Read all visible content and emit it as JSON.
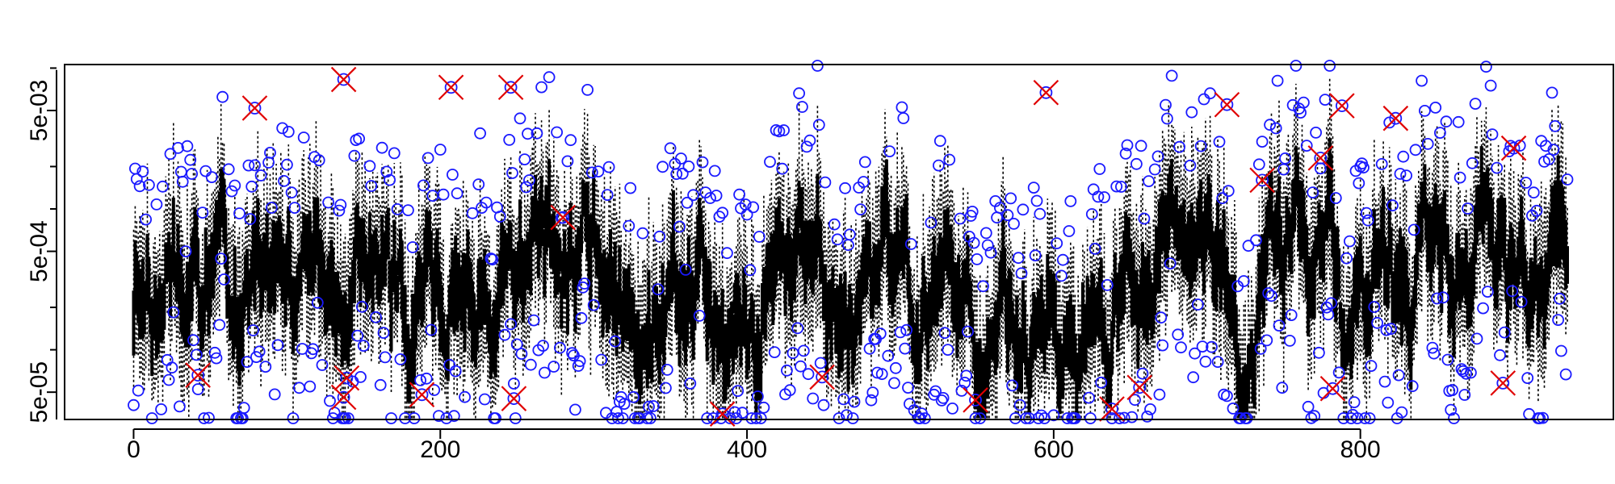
{
  "chart_data": {
    "type": "box-series",
    "title": "",
    "xlabel": "",
    "ylabel": "",
    "x_scale": "linear",
    "y_scale": "log",
    "xlim": [
      -45,
      965
    ],
    "ylim": [
      3.2e-05,
      0.0106
    ],
    "x_ticks": [
      0,
      200,
      400,
      600,
      800
    ],
    "x_tick_labels": [
      "0",
      "200",
      "400",
      "600",
      "800"
    ],
    "y_ticks": [
      5e-05,
      0.0005,
      0.005
    ],
    "y_tick_labels": [
      "5e-05",
      "5e-04",
      "5e-03"
    ],
    "y_minor_ticks": [
      0.0001,
      0.0002,
      0.001,
      0.002,
      0.01
    ],
    "n_positions": 936,
    "grid": false,
    "legend": "none",
    "colors": {
      "box": "#000000",
      "circle": "#1a1aff",
      "cross": "#e00000"
    },
    "cross_points": [
      {
        "x": 42,
        "y": 6.6e-05
      },
      {
        "x": 79,
        "y": 0.0052
      },
      {
        "x": 137,
        "y": 0.0083
      },
      {
        "x": 137,
        "y": 4.6e-05
      },
      {
        "x": 139,
        "y": 6.3e-05
      },
      {
        "x": 188,
        "y": 4.8e-05
      },
      {
        "x": 207,
        "y": 0.0073
      },
      {
        "x": 246,
        "y": 0.0073
      },
      {
        "x": 248,
        "y": 4.5e-05
      },
      {
        "x": 280,
        "y": 0.00087
      },
      {
        "x": 384,
        "y": 3.5e-05
      },
      {
        "x": 449,
        "y": 6.4e-05
      },
      {
        "x": 549,
        "y": 4.4e-05
      },
      {
        "x": 595,
        "y": 0.0067
      },
      {
        "x": 638,
        "y": 3.8e-05
      },
      {
        "x": 656,
        "y": 5.4e-05
      },
      {
        "x": 713,
        "y": 0.0055
      },
      {
        "x": 736,
        "y": 0.0016
      },
      {
        "x": 774,
        "y": 0.0023
      },
      {
        "x": 782,
        "y": 5.3e-05
      },
      {
        "x": 788,
        "y": 0.0054
      },
      {
        "x": 823,
        "y": 0.0044
      },
      {
        "x": 893,
        "y": 5.8e-05
      },
      {
        "x": 900,
        "y": 0.0027
      }
    ]
  }
}
